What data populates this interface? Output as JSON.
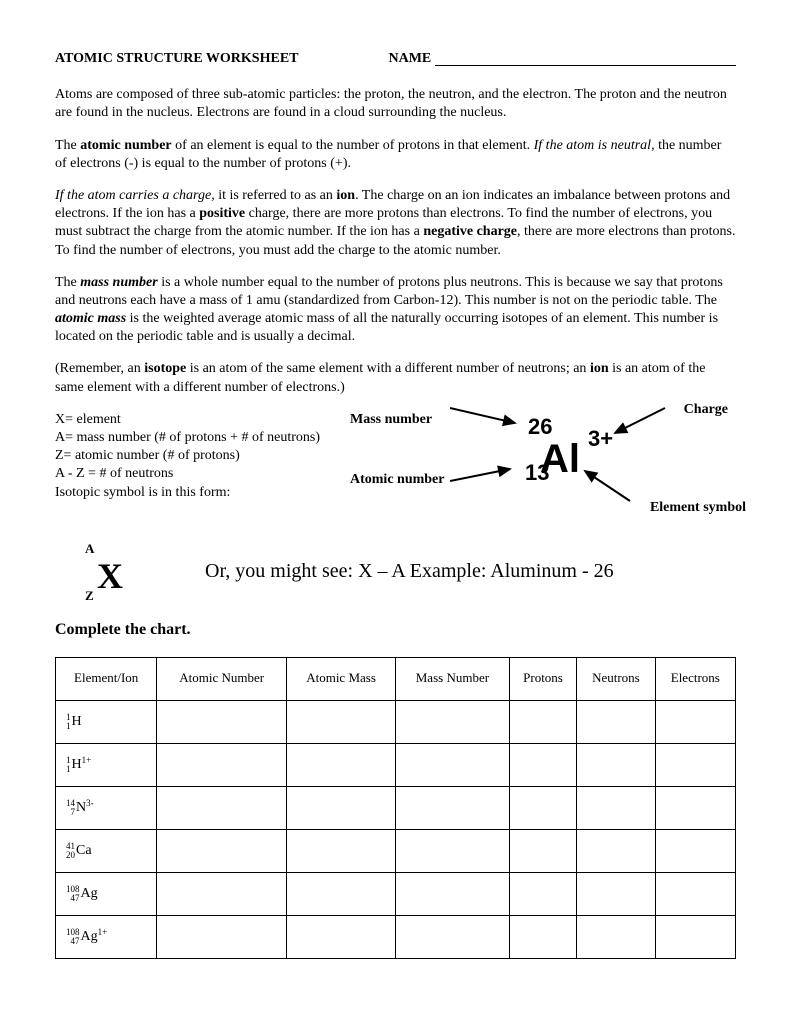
{
  "header": {
    "title": "ATOMIC STRUCTURE WORKSHEET",
    "name_label": "NAME"
  },
  "p1_a": "Atoms are composed of three sub-atomic particles:  the proton, the neutron, and the electron.  The proton and the neutron are found in the nucleus.  Electrons are found in a cloud surrounding the nucleus.",
  "p2_a": "The ",
  "p2_b": "atomic number",
  "p2_c": " of an element is equal to the number of protons in that element.  ",
  "p2_d": "If the atom is neutral",
  "p2_e": ", the number of electrons (-) is equal to the number of protons (+).",
  "p3_a": "If the atom carries a charge",
  "p3_b": ", it is referred to as an ",
  "p3_c": "ion",
  "p3_d": ".  The charge on an ion indicates an imbalance between protons and electrons.  If the ion has a ",
  "p3_e": "positive",
  "p3_f": " charge, there are more protons than electrons. To find the number of electrons, you must subtract the charge from the atomic number.  If the ion has a ",
  "p3_g": "negative charge",
  "p3_h": ", there are more electrons than protons. To find the number of electrons, you must add the charge to the atomic number.",
  "p4_a": "The ",
  "p4_b": "mass number",
  "p4_c": " is a whole number equal to the number of protons plus neutrons. This is because we say that protons and neutrons each have a mass of 1 amu (standardized from Carbon-12). This number is not on the periodic table. The ",
  "p4_d": "atomic mass",
  "p4_e": " is the weighted average atomic mass of all the naturally occurring isotopes of an element. This number is located on the periodic table and is usually a decimal.",
  "p5_a": "(Remember, an ",
  "p5_b": "isotope",
  "p5_c": " is an atom of the same element with a different number of neutrons; an ",
  "p5_d": "ion",
  "p5_e": " is an atom of the same element with a different number of electrons.)",
  "defs": {
    "d1": "X= element",
    "d2": "A= mass number (# of protons + # of neutrons)",
    "d3": "Z= atomic number (# of protons)",
    "d4": "A - Z = # of neutrons",
    "d5": "Isotopic symbol is in this form:"
  },
  "labels": {
    "mass": "Mass number",
    "atno": "Atomic number",
    "charge": "Charge",
    "elsym": "Element symbol"
  },
  "example": {
    "element": "Al",
    "mass": "26",
    "atno": "13",
    "charge": "3+"
  },
  "iso_template": {
    "A": "A",
    "X": "X",
    "Z": "Z"
  },
  "or_line": "Or, you might see: X – A    Example: Aluminum - 26",
  "section": "Complete the chart.",
  "table": {
    "headers": [
      "Element/Ion",
      "Atomic Number",
      "Atomic Mass",
      "Mass Number",
      "Protons",
      "Neutrons",
      "Electrons"
    ],
    "rows": [
      {
        "mass": "1",
        "z": "1",
        "sym": "H",
        "chg": ""
      },
      {
        "mass": "1",
        "z": "1",
        "sym": "H",
        "chg": "1+"
      },
      {
        "mass": "14",
        "z": "7",
        "sym": "N",
        "chg": "3-"
      },
      {
        "mass": "41",
        "z": "20",
        "sym": "Ca",
        "chg": ""
      },
      {
        "mass": "108",
        "z": "47",
        "sym": "Ag",
        "chg": ""
      },
      {
        "mass": "108",
        "z": "47",
        "sym": "Ag",
        "chg": "1+"
      }
    ]
  }
}
